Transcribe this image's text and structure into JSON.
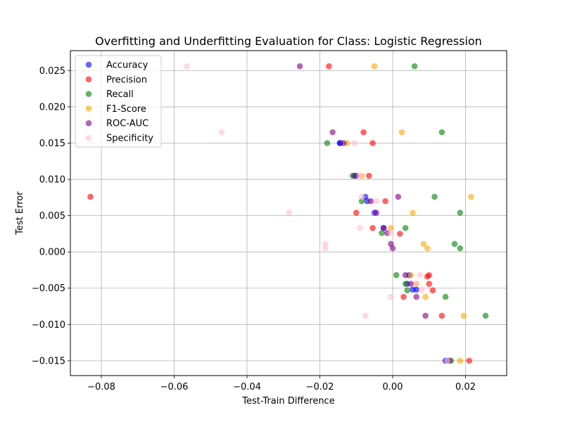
{
  "chart_data": {
    "type": "scatter",
    "title": "Overfitting and Underfitting Evaluation for Class: Logistic Regression",
    "xlabel": "Test-Train Difference",
    "ylabel": "Test Error",
    "xlim": [
      -0.0885,
      0.0313
    ],
    "ylim": [
      -0.01705,
      0.02775
    ],
    "x_ticks": [
      -0.08,
      -0.06,
      -0.04,
      -0.02,
      0.0,
      0.02
    ],
    "x_tick_labels": [
      "−0.08",
      "−0.06",
      "−0.04",
      "−0.02",
      "0.00",
      "0.02"
    ],
    "y_ticks": [
      -0.015,
      -0.01,
      -0.005,
      0.0,
      0.005,
      0.01,
      0.015,
      0.02,
      0.025
    ],
    "y_tick_labels": [
      "−0.015",
      "−0.010",
      "−0.005",
      "0.000",
      "0.005",
      "0.010",
      "0.015",
      "0.020",
      "0.025"
    ],
    "grid": true,
    "legend_position": "top-left",
    "marker_alpha": 0.6,
    "series": [
      {
        "name": "Accuracy",
        "color": "#0000ff",
        "points": [
          [
            -0.0145,
            0.015
          ],
          [
            -0.0145,
            0.015
          ],
          [
            -0.0105,
            0.0105
          ],
          [
            -0.0075,
            0.0076
          ],
          [
            -0.007,
            0.007
          ],
          [
            -0.005,
            0.0054
          ],
          [
            -0.0025,
            0.0033
          ],
          [
            0.0045,
            -0.0032
          ],
          [
            0.004,
            -0.0044
          ],
          [
            0.0055,
            -0.0052
          ],
          [
            0.0065,
            -0.0052
          ],
          [
            0.0145,
            -0.015
          ]
        ]
      },
      {
        "name": "Precision",
        "color": "#ff0000",
        "points": [
          [
            -0.083,
            0.0076
          ],
          [
            -0.0175,
            0.0256
          ],
          [
            -0.008,
            0.0165
          ],
          [
            -0.0055,
            0.015
          ],
          [
            -0.0065,
            0.0105
          ],
          [
            -0.002,
            0.007
          ],
          [
            -0.01,
            0.0054
          ],
          [
            -0.0055,
            0.0033
          ],
          [
            0.002,
            0.0025
          ],
          [
            0.01,
            -0.0032
          ],
          [
            0.0095,
            -0.0034
          ],
          [
            0.01,
            -0.0044
          ],
          [
            0.011,
            -0.0053
          ],
          [
            0.003,
            -0.0062
          ],
          [
            0.0135,
            -0.0088
          ],
          [
            0.021,
            -0.015
          ]
        ]
      },
      {
        "name": "Recall",
        "color": "#008000",
        "points": [
          [
            0.006,
            0.0256
          ],
          [
            0.0135,
            0.0165
          ],
          [
            -0.018,
            0.015
          ],
          [
            -0.011,
            0.0105
          ],
          [
            -0.0085,
            0.007
          ],
          [
            0.0115,
            0.0076
          ],
          [
            0.0185,
            0.0054
          ],
          [
            0.0035,
            0.0033
          ],
          [
            -0.003,
            0.0026
          ],
          [
            0.017,
            0.0011
          ],
          [
            0.0185,
            0.0005
          ],
          [
            0.001,
            -0.0032
          ],
          [
            0.0035,
            -0.0044
          ],
          [
            0.004,
            -0.0053
          ],
          [
            0.0145,
            -0.0062
          ],
          [
            0.0255,
            -0.0088
          ],
          [
            0.016,
            -0.015
          ]
        ]
      },
      {
        "name": "F1-Score",
        "color": "#ffa500",
        "points": [
          [
            -0.005,
            0.0256
          ],
          [
            0.0025,
            0.0165
          ],
          [
            -0.0125,
            0.015
          ],
          [
            -0.0085,
            0.0105
          ],
          [
            0.0215,
            0.0076
          ],
          [
            0.0055,
            0.0054
          ],
          [
            -0.0005,
            0.0033
          ],
          [
            0.0085,
            0.0011
          ],
          [
            0.0095,
            0.0005
          ],
          [
            0.005,
            -0.0032
          ],
          [
            0.009,
            -0.0062
          ],
          [
            0.0065,
            -0.0044
          ],
          [
            0.0195,
            -0.0088
          ],
          [
            0.0185,
            -0.015
          ]
        ]
      },
      {
        "name": "ROC-AUC",
        "color": "#800080",
        "points": [
          [
            -0.0255,
            0.0256
          ],
          [
            -0.0165,
            0.0165
          ],
          [
            -0.0135,
            0.015
          ],
          [
            -0.01,
            0.0105
          ],
          [
            -0.006,
            0.007
          ],
          [
            0.0015,
            0.0076
          ],
          [
            -0.0045,
            0.0054
          ],
          [
            -0.0025,
            0.0033
          ],
          [
            -0.0015,
            0.0026
          ],
          [
            -0.0005,
            0.0011
          ],
          [
            0.0,
            0.0005
          ],
          [
            0.0035,
            -0.0032
          ],
          [
            0.005,
            -0.0044
          ],
          [
            0.0065,
            -0.0062
          ],
          [
            0.009,
            -0.0088
          ],
          [
            0.0155,
            -0.015
          ]
        ]
      },
      {
        "name": "Specificity",
        "color": "#ffc0cb",
        "points": [
          [
            -0.0565,
            0.0256
          ],
          [
            -0.047,
            0.0165
          ],
          [
            -0.0105,
            0.015
          ],
          [
            -0.009,
            0.0105
          ],
          [
            -0.0285,
            0.0054
          ],
          [
            -0.0085,
            0.0076
          ],
          [
            -0.0045,
            0.007
          ],
          [
            -0.009,
            0.0033
          ],
          [
            -0.0185,
            0.0011
          ],
          [
            -0.0185,
            0.0005
          ],
          [
            -0.0005,
            0.0026
          ],
          [
            0.0075,
            -0.0032
          ],
          [
            0.0065,
            -0.0044
          ],
          [
            0.008,
            -0.0052
          ],
          [
            -0.0005,
            -0.0062
          ],
          [
            -0.0075,
            -0.0088
          ],
          [
            0.015,
            -0.015
          ]
        ]
      }
    ]
  }
}
